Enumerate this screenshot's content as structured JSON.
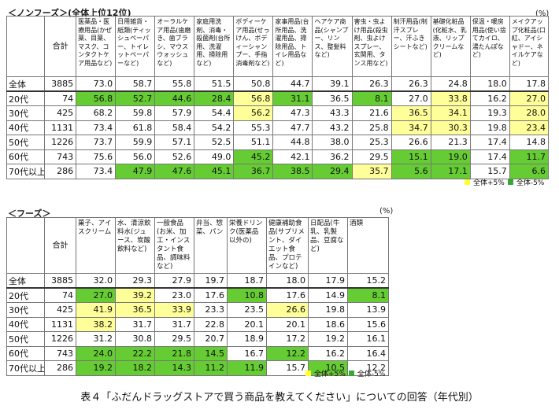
{
  "nonfood": {
    "title": "＜ノンフーズ＞(全体上位12位)",
    "unit": "(%)",
    "total_header": "合計",
    "columns": [
      "医薬品・医療用品(かぜ薬、目薬、マスク、コンタクトケア用品など)",
      "日用雑貨・紙類(ティッシュペーパー、トイレットペーパーなど)",
      "オーラルケア用品(歯磨き、歯ブラシ、マウスウォッシュなど)",
      "家庭用洗剤、消毒・殺菌剤(台所用、洗濯用、掃除用など)",
      "ボディーケア用品(せっけん、ボディーシャンプー、手指消毒剤など)",
      "家事用品(台所用品、洗濯用品、掃除用品、トイレ用品など)",
      "ヘアケア商品(シャンプー、リンス、整髪料など)",
      "害虫・虫よけ用品(殺虫剤、虫よけスプレー、玄関用、タンス用など)",
      "制汗用品(制汗スプレー、汗ふきシートなど)",
      "基礎化粧品(化粧水、乳液、リップクリームなど)",
      "保温・暖房用品(使い捨てカイロ、湯たんぽなど)",
      "メイクアップ化粧品(口紅、アイシャドー、ネイルケアなど)"
    ],
    "rows": [
      {
        "label": "全体",
        "total": "3885",
        "values": [
          "73.0",
          "58.7",
          "55.8",
          "51.5",
          "50.8",
          "44.7",
          "39.1",
          "26.3",
          "26.3",
          "24.8",
          "18.0",
          "17.8"
        ],
        "hl": [
          "",
          "",
          "",
          "",
          "",
          "",
          "",
          "",
          "",
          "",
          "",
          ""
        ]
      },
      {
        "label": "20代",
        "total": "74",
        "values": [
          "56.8",
          "52.7",
          "44.6",
          "28.4",
          "56.8",
          "31.1",
          "36.5",
          "8.1",
          "27.0",
          "33.8",
          "16.2",
          "27.0"
        ],
        "hl": [
          "m",
          "m",
          "m",
          "m",
          "p",
          "m",
          "",
          "m",
          "",
          "p",
          "",
          "p"
        ]
      },
      {
        "label": "30代",
        "total": "425",
        "values": [
          "68.2",
          "59.8",
          "57.9",
          "54.4",
          "56.2",
          "47.3",
          "43.3",
          "21.6",
          "36.5",
          "34.1",
          "19.3",
          "28.0"
        ],
        "hl": [
          "",
          "",
          "",
          "",
          "p",
          "",
          "",
          "",
          "p",
          "p",
          "",
          "p"
        ]
      },
      {
        "label": "40代",
        "total": "1131",
        "values": [
          "73.4",
          "61.8",
          "58.4",
          "54.2",
          "55.3",
          "47.7",
          "43.2",
          "25.8",
          "34.7",
          "30.3",
          "19.8",
          "23.4"
        ],
        "hl": [
          "",
          "",
          "",
          "",
          "",
          "",
          "",
          "",
          "p",
          "p",
          "",
          "p"
        ]
      },
      {
        "label": "50代",
        "total": "1226",
        "values": [
          "73.7",
          "59.9",
          "57.1",
          "52.5",
          "51.1",
          "44.8",
          "38.0",
          "25.3",
          "26.6",
          "21.3",
          "17.4",
          "14.8"
        ],
        "hl": [
          "",
          "",
          "",
          "",
          "",
          "",
          "",
          "",
          "",
          "",
          "",
          ""
        ]
      },
      {
        "label": "60代",
        "total": "743",
        "values": [
          "75.6",
          "56.0",
          "52.6",
          "49.0",
          "45.2",
          "42.1",
          "36.2",
          "29.5",
          "15.1",
          "19.0",
          "17.4",
          "11.7"
        ],
        "hl": [
          "",
          "",
          "",
          "",
          "m",
          "",
          "",
          "",
          "m",
          "m",
          "",
          "m"
        ]
      },
      {
        "label": "70代以上",
        "total": "286",
        "values": [
          "73.4",
          "47.9",
          "47.6",
          "45.1",
          "36.7",
          "38.5",
          "29.4",
          "35.7",
          "5.6",
          "17.1",
          "15.7",
          "6.6"
        ],
        "hl": [
          "",
          "m",
          "m",
          "m",
          "m",
          "m",
          "m",
          "p",
          "m",
          "m",
          "",
          "m"
        ]
      }
    ],
    "legend_plus": "全体+5%",
    "legend_minus": "全体-5%"
  },
  "food": {
    "title": "＜フーズ＞",
    "unit": "(%)",
    "total_header": "合計",
    "columns": [
      "菓子、アイスクリーム",
      "水、清涼飲料水(ジュース、炭酸飲料など)",
      "一般食品(お米、加工・インスタント食品、調味料など)",
      "弁当、惣菜、パン",
      "栄養ドリンク(医薬品以外の)",
      "健康補助食品(サプリメント、ダイエット食品、プロテインなど)",
      "日配品(牛乳、乳製品、豆腐など)",
      "酒類"
    ],
    "rows": [
      {
        "label": "全体",
        "total": "3885",
        "values": [
          "32.0",
          "29.3",
          "27.9",
          "19.7",
          "18.7",
          "18.0",
          "17.9",
          "15.2"
        ],
        "hl": [
          "",
          "",
          "",
          "",
          "",
          "",
          "",
          ""
        ]
      },
      {
        "label": "20代",
        "total": "74",
        "values": [
          "27.0",
          "39.2",
          "23.0",
          "17.6",
          "10.8",
          "17.6",
          "14.9",
          "8.1"
        ],
        "hl": [
          "m",
          "p",
          "",
          "",
          "m",
          "",
          "",
          "m"
        ]
      },
      {
        "label": "30代",
        "total": "425",
        "values": [
          "41.9",
          "36.5",
          "33.9",
          "23.3",
          "23.5",
          "26.6",
          "19.8",
          "13.9"
        ],
        "hl": [
          "p",
          "p",
          "p",
          "",
          "",
          "p",
          "",
          ""
        ]
      },
      {
        "label": "40代",
        "total": "1131",
        "values": [
          "38.2",
          "31.7",
          "31.7",
          "22.8",
          "20.1",
          "20.1",
          "18.6",
          "15.6"
        ],
        "hl": [
          "p",
          "",
          "",
          "",
          "",
          "",
          "",
          ""
        ]
      },
      {
        "label": "50代",
        "total": "1226",
        "values": [
          "31.2",
          "30.8",
          "29.5",
          "20.7",
          "18.9",
          "17.2",
          "19.2",
          "16.1"
        ],
        "hl": [
          "",
          "",
          "",
          "",
          "",
          "",
          "",
          ""
        ]
      },
      {
        "label": "60代",
        "total": "743",
        "values": [
          "24.0",
          "22.2",
          "21.8",
          "14.5",
          "16.7",
          "12.2",
          "16.2",
          "16.4"
        ],
        "hl": [
          "m",
          "m",
          "m",
          "m",
          "",
          "m",
          "",
          ""
        ]
      },
      {
        "label": "70代以上",
        "total": "286",
        "values": [
          "19.2",
          "18.2",
          "14.3",
          "11.2",
          "11.9",
          "15.7",
          "10.5",
          "12.2"
        ],
        "hl": [
          "m",
          "m",
          "m",
          "m",
          "m",
          "",
          "m",
          ""
        ]
      }
    ],
    "legend_plus": "全体+5%",
    "legend_minus": "全体-5%"
  },
  "caption": "表４「ふだんドラッグストアで買う商品を教えてください」についての回答（年代別）",
  "colors": {
    "plus": "#ffff99",
    "minus": "#66cc33"
  }
}
